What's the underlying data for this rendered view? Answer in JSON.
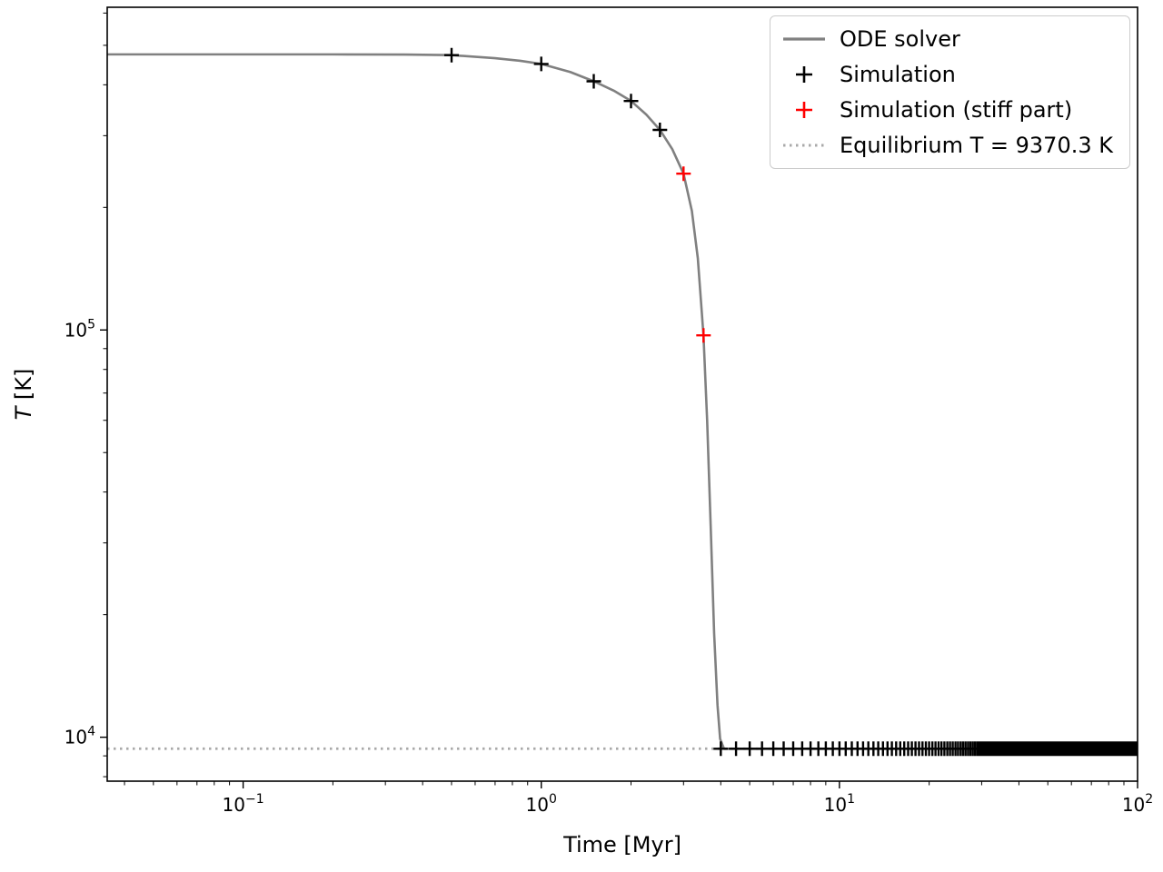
{
  "figure": {
    "background": "#ffffff",
    "spine_color": "#000000"
  },
  "chart_data": {
    "type": "line",
    "title": "",
    "xlabel": "Time [Myr]",
    "ylabel": "T [K]",
    "xscale": "log",
    "yscale": "log",
    "xlim": [
      0.035,
      100
    ],
    "ylim": [
      7800,
      620000
    ],
    "grid": false,
    "legend_position": "upper right",
    "x_ticks": [
      {
        "value": 0.1,
        "exponent": -1
      },
      {
        "value": 1,
        "exponent": 0
      },
      {
        "value": 10,
        "exponent": 1
      },
      {
        "value": 100,
        "exponent": 2
      }
    ],
    "y_ticks": [
      {
        "value": 10000,
        "exponent": 4
      },
      {
        "value": 100000,
        "exponent": 5
      }
    ],
    "equilibrium_temperature_K": 9370.3,
    "series": [
      {
        "name": "Equilibrium T = 9370.3 K",
        "type": "hline",
        "y": 9370.3,
        "color": "#a9a9a9",
        "linestyle": "dotted",
        "linewidth": 2.8
      },
      {
        "name": "ODE solver",
        "type": "line",
        "color": "#808080",
        "linewidth": 2.6,
        "points": [
          [
            0.035,
            475000
          ],
          [
            0.2,
            475000
          ],
          [
            0.35,
            474500
          ],
          [
            0.5,
            473000
          ],
          [
            0.7,
            465000
          ],
          [
            0.85,
            458000
          ],
          [
            1.0,
            450000
          ],
          [
            1.25,
            430000
          ],
          [
            1.5,
            408000
          ],
          [
            1.75,
            387000
          ],
          [
            2.0,
            365000
          ],
          [
            2.25,
            338000
          ],
          [
            2.5,
            310000
          ],
          [
            2.75,
            278000
          ],
          [
            3.0,
            242000
          ],
          [
            3.2,
            196000
          ],
          [
            3.35,
            150000
          ],
          [
            3.5,
            97000
          ],
          [
            3.6,
            60000
          ],
          [
            3.7,
            33000
          ],
          [
            3.8,
            18000
          ],
          [
            3.9,
            12000
          ],
          [
            3.98,
            9900
          ],
          [
            4.1,
            9370.3
          ],
          [
            10,
            9370.3
          ],
          [
            100,
            9370.3
          ]
        ]
      },
      {
        "name": "Simulation",
        "type": "scatter",
        "marker": "plus",
        "color": "#000000",
        "markersize": 8,
        "markeredgewidth": 2.4,
        "points": [
          [
            0.5,
            473000
          ],
          [
            1.0,
            450000
          ],
          [
            1.5,
            408000
          ],
          [
            2.0,
            365000
          ],
          [
            2.5,
            310000
          ]
        ],
        "equilibrium_tail": {
          "t_start": 4.0,
          "t_stop": 100.0,
          "t_step": 0.5,
          "T": 9370.3
        }
      },
      {
        "name": "Simulation (stiff part)",
        "type": "scatter",
        "marker": "plus",
        "color": "#ff0000",
        "markersize": 8,
        "markeredgewidth": 2.4,
        "points": [
          [
            3.0,
            242000
          ],
          [
            3.5,
            97000
          ]
        ]
      }
    ]
  },
  "legend": {
    "items": [
      {
        "label": "ODE solver",
        "sample": "line",
        "color": "#808080"
      },
      {
        "label": "Simulation",
        "sample": "plus",
        "color": "#000000"
      },
      {
        "label": "Simulation (stiff part)",
        "sample": "plus",
        "color": "#ff0000"
      },
      {
        "label": "Equilibrium T = 9370.3 K",
        "sample": "dotted-line",
        "color": "#a9a9a9"
      }
    ]
  }
}
